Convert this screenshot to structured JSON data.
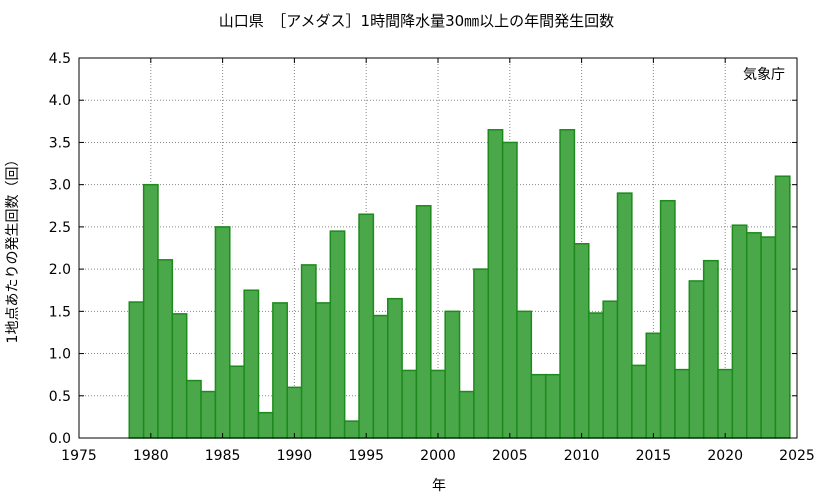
{
  "chart_data": {
    "type": "bar",
    "title": "山口県　［アメダス］1時間降水量30㎜以上の年間発生回数",
    "xlabel": "年",
    "ylabel": "1地点あたりの発生回数（回）",
    "source": "気象庁",
    "xlim": [
      1975,
      2025
    ],
    "ylim": [
      0,
      4.5
    ],
    "xticks": [
      1975,
      1980,
      1985,
      1990,
      1995,
      2000,
      2005,
      2010,
      2015,
      2020,
      2025
    ],
    "yticks": [
      "0.0",
      "0.5",
      "1.0",
      "1.5",
      "2.0",
      "2.5",
      "3.0",
      "3.5",
      "4.0",
      "4.5"
    ],
    "grid": true,
    "bar_color": "#4aa84a",
    "bar_edge_color": "#1d8a1d",
    "x": [
      1979,
      1980,
      1981,
      1982,
      1983,
      1984,
      1985,
      1986,
      1987,
      1988,
      1989,
      1990,
      1991,
      1992,
      1993,
      1994,
      1995,
      1996,
      1997,
      1998,
      1999,
      2000,
      2001,
      2002,
      2003,
      2004,
      2005,
      2006,
      2007,
      2008,
      2009,
      2010,
      2011,
      2012,
      2013,
      2014,
      2015,
      2016,
      2017,
      2018,
      2019,
      2020,
      2021,
      2022,
      2023,
      2024
    ],
    "values": [
      1.61,
      3.0,
      2.11,
      1.47,
      0.68,
      0.55,
      2.5,
      0.85,
      1.75,
      0.3,
      1.6,
      0.6,
      2.05,
      1.6,
      2.45,
      0.2,
      2.65,
      1.45,
      1.65,
      0.8,
      2.75,
      0.8,
      1.5,
      0.55,
      2.0,
      3.65,
      3.5,
      1.5,
      0.75,
      0.75,
      3.65,
      2.3,
      1.48,
      1.62,
      2.9,
      0.86,
      1.24,
      2.81,
      0.81,
      1.86,
      2.1,
      0.81,
      2.52,
      2.43,
      2.38,
      3.1
    ]
  }
}
